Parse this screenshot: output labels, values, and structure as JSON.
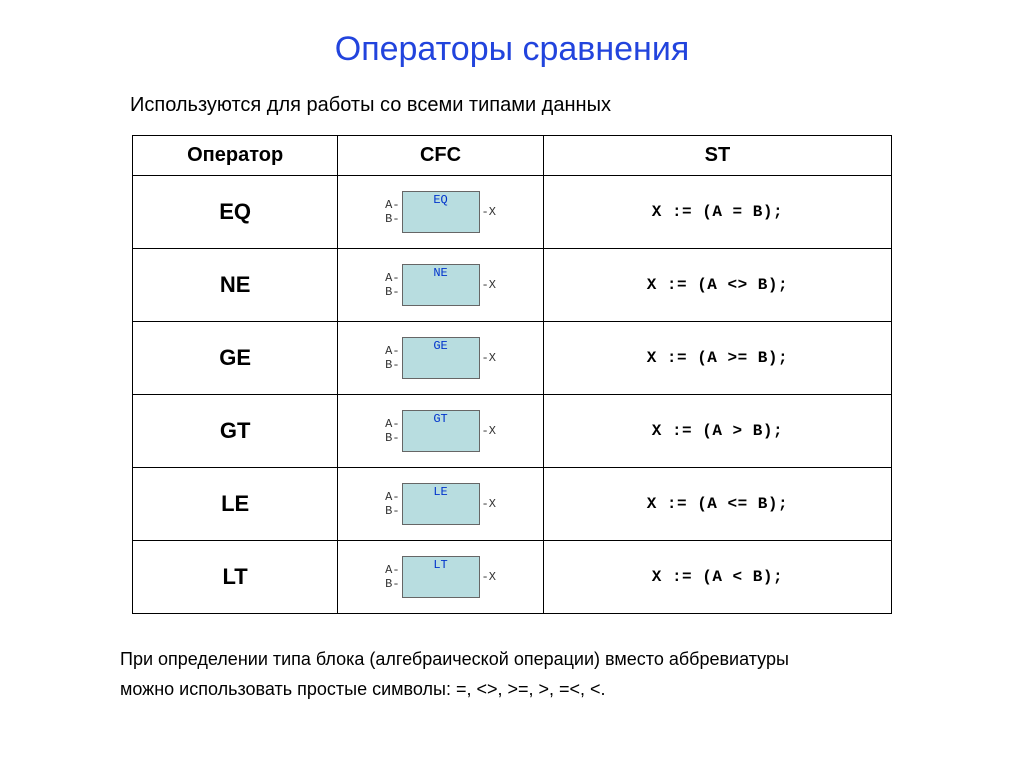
{
  "title": "Операторы сравнения",
  "title_color": "#2244dd",
  "subtitle": "Используются для работы со всеми типами данных",
  "table": {
    "header": {
      "op": "Оператор",
      "cfc": "CFC",
      "st": "ST"
    },
    "block_bg": "#b8dde0",
    "block_label_color": "#0033cc",
    "pin_left_a": "A-",
    "pin_left_b": "B-",
    "pin_right_x": "-X",
    "rows": [
      {
        "op": "EQ",
        "block": "EQ",
        "st": "X := (A = B);"
      },
      {
        "op": "NE",
        "block": "NE",
        "st": "X := (A <> B);"
      },
      {
        "op": "GE",
        "block": "GE",
        "st": "X := (A >= B);"
      },
      {
        "op": "GT",
        "block": "GT",
        "st": "X := (A > B);"
      },
      {
        "op": "LE",
        "block": "LE",
        "st": "X := (A <= B);"
      },
      {
        "op": "LT",
        "block": "LT",
        "st": "X := (A < B);"
      }
    ]
  },
  "note_line1": "При определении типа блока (алгебраической операции) вместо аббревиатуры",
  "note_line2": "можно использовать простые символы: =, <>, >=, >, =<, <."
}
